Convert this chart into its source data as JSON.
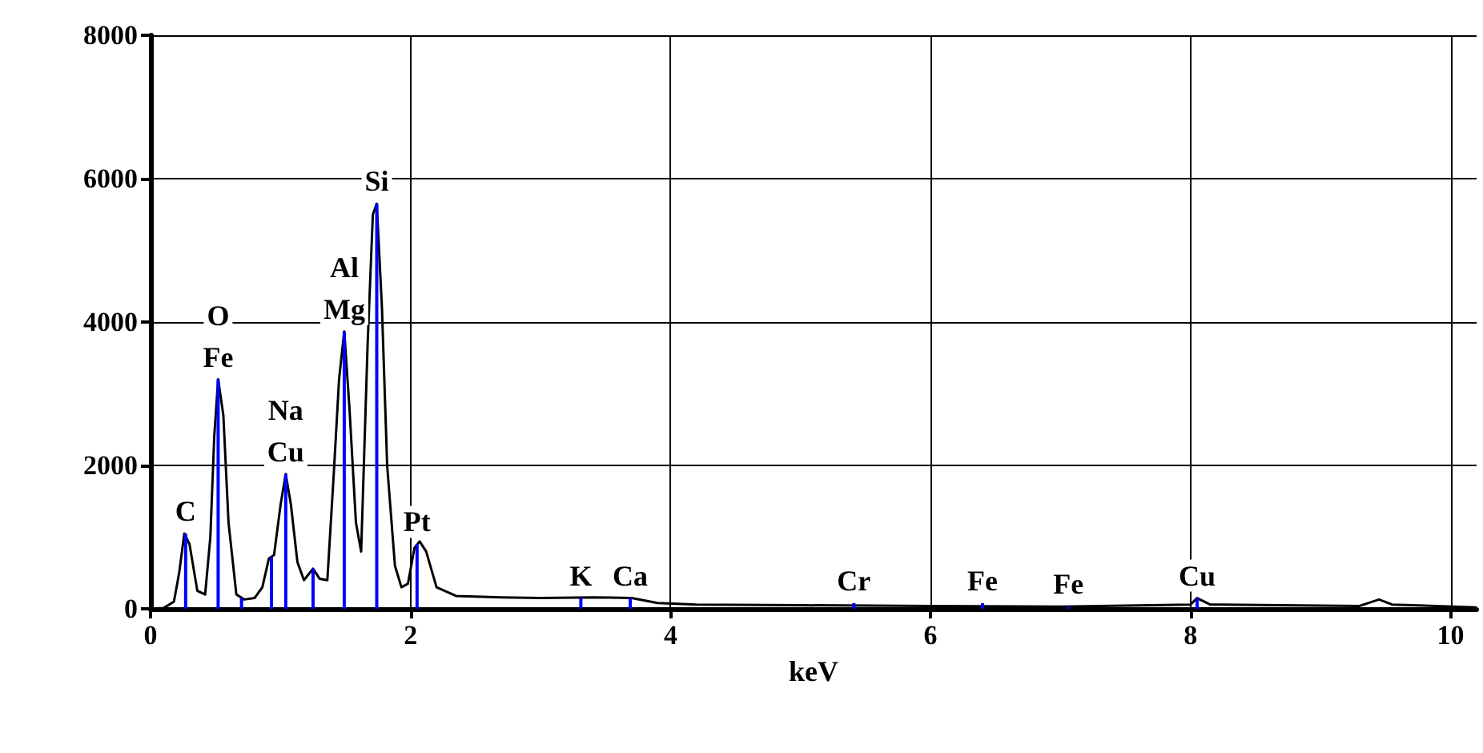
{
  "chart_data": {
    "type": "line",
    "xlabel": "keV",
    "xlim": [
      0,
      10.2
    ],
    "xticks": [
      0,
      2,
      4,
      6,
      8,
      10
    ],
    "ylim": [
      0,
      8000
    ],
    "yticks": [
      0,
      2000,
      4000,
      6000,
      8000
    ],
    "grid": true,
    "marker": "none",
    "line_style": "solid",
    "series": [
      {
        "color": "#000000",
        "x": [
          0,
          0.1,
          0.18,
          0.22,
          0.26,
          0.3,
          0.36,
          0.42,
          0.46,
          0.49,
          0.52,
          0.56,
          0.6,
          0.66,
          0.72,
          0.8,
          0.86,
          0.91,
          0.95,
          1.0,
          1.04,
          1.08,
          1.13,
          1.18,
          1.25,
          1.3,
          1.36,
          1.41,
          1.45,
          1.49,
          1.53,
          1.58,
          1.62,
          1.67,
          1.71,
          1.74,
          1.78,
          1.82,
          1.88,
          1.93,
          1.98,
          2.03,
          2.07,
          2.12,
          2.2,
          2.35,
          2.7,
          3.0,
          3.4,
          3.7,
          3.9,
          4.2,
          5.0,
          6.0,
          7.0,
          8.0,
          8.05,
          8.15,
          9.3,
          9.45,
          9.55,
          10.2
        ],
        "values": [
          0,
          10,
          100,
          500,
          1050,
          900,
          250,
          200,
          1000,
          2400,
          3200,
          2700,
          1200,
          200,
          130,
          150,
          300,
          700,
          750,
          1450,
          1880,
          1450,
          650,
          400,
          560,
          420,
          400,
          1900,
          3200,
          3870,
          2800,
          1200,
          800,
          3700,
          5500,
          5650,
          4200,
          2000,
          600,
          300,
          350,
          850,
          940,
          800,
          300,
          180,
          160,
          150,
          160,
          150,
          80,
          60,
          50,
          40,
          30,
          60,
          150,
          60,
          40,
          130,
          60,
          20
        ]
      },
      {
        "type": "bar",
        "color": "#0000ff",
        "x": [
          0.27,
          0.52,
          0.7,
          0.93,
          1.04,
          1.25,
          1.49,
          1.74,
          2.05,
          3.31,
          3.69,
          5.41,
          6.4,
          7.06,
          8.05
        ],
        "values": [
          1050,
          3200,
          150,
          720,
          1880,
          560,
          3870,
          5650,
          900,
          150,
          150,
          80,
          80,
          30,
          150
        ]
      }
    ],
    "annotations": [
      {
        "text": "C",
        "x": 0.27,
        "y": 1050
      },
      {
        "text": "Fe",
        "x": 0.52,
        "y": 3200
      },
      {
        "text": "O",
        "x": 0.52,
        "y": 3200
      },
      {
        "text": "Cu",
        "x": 1.04,
        "y": 1880
      },
      {
        "text": "Na",
        "x": 1.04,
        "y": 1880
      },
      {
        "text": "Mg",
        "x": 1.49,
        "y": 3870
      },
      {
        "text": "Al",
        "x": 1.49,
        "y": 3870
      },
      {
        "text": "Si",
        "x": 1.74,
        "y": 5650
      },
      {
        "text": "Pt",
        "x": 2.05,
        "y": 900
      },
      {
        "text": "K",
        "x": 3.31,
        "y": 150
      },
      {
        "text": "Ca",
        "x": 3.69,
        "y": 150
      },
      {
        "text": "Cr",
        "x": 5.41,
        "y": 80
      },
      {
        "text": "Fe",
        "x": 6.4,
        "y": 80
      },
      {
        "text": "Fe",
        "x": 7.06,
        "y": 30
      },
      {
        "text": "Cu",
        "x": 8.05,
        "y": 150
      }
    ]
  }
}
